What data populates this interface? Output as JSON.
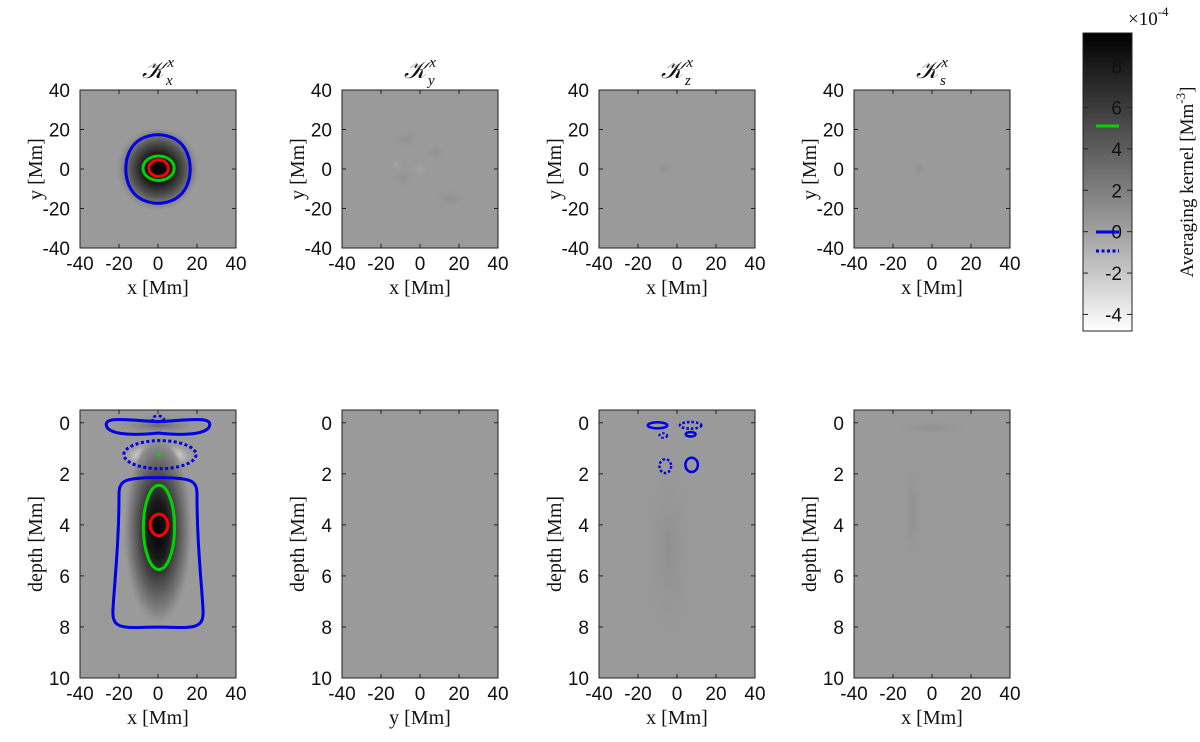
{
  "figure": {
    "panels_top": [
      {
        "title_main": "𝒦",
        "title_sub": "x",
        "title_sup": "x",
        "xlabel": "x [Mm]",
        "ylabel": "y [Mm]"
      },
      {
        "title_main": "𝒦",
        "title_sub": "y",
        "title_sup": "x",
        "xlabel": "x [Mm]",
        "ylabel": "y [Mm]"
      },
      {
        "title_main": "𝒦",
        "title_sub": "z",
        "title_sup": "x",
        "xlabel": "x [Mm]",
        "ylabel": "y [Mm]"
      },
      {
        "title_main": "𝒦",
        "title_sub": "s",
        "title_sup": "x",
        "xlabel": "x [Mm]",
        "ylabel": "y [Mm]"
      }
    ],
    "panels_bottom": [
      {
        "xlabel": "x [Mm]",
        "ylabel": "depth [Mm]"
      },
      {
        "xlabel": "y [Mm]",
        "ylabel": "depth [Mm]"
      },
      {
        "xlabel": "x [Mm]",
        "ylabel": "depth [Mm]"
      },
      {
        "xlabel": "x [Mm]",
        "ylabel": "depth [Mm]"
      }
    ],
    "colorbar": {
      "label": "Averaging kernel [Mm",
      "label_sup": "-3",
      "label_close": "]",
      "multiplier_base": "×10",
      "multiplier_exp": "-4",
      "ticks": [
        "-4",
        "-2",
        "0",
        "2",
        "4",
        "6",
        "8"
      ],
      "range": [
        -4.8,
        9.6
      ]
    },
    "colors": {
      "background": "#9a9a9a",
      "contour_outer": "#0000e6",
      "contour_mid": "#00d400",
      "contour_peak": "#ff0000"
    }
  },
  "chart_data": [
    {
      "type": "heatmap",
      "panel": "top-1",
      "title": "K_x^x",
      "x_range": [
        -40,
        40
      ],
      "y_range": [
        -40,
        40
      ],
      "xticks": [
        -40,
        -20,
        0,
        20,
        40
      ],
      "yticks": [
        40,
        20,
        0,
        -20,
        -40
      ],
      "peak": {
        "x": 0,
        "y": 0,
        "value": 0.00095
      },
      "contours": [
        {
          "level_colorbar": 0.4,
          "style": "solid",
          "color": "blue"
        },
        {
          "level_colorbar": 5,
          "color": "green"
        },
        {
          "level_colorbar": "peak",
          "color": "red"
        }
      ]
    },
    {
      "type": "heatmap",
      "panel": "top-2",
      "title": "K_y^x",
      "x_range": [
        -40,
        40
      ],
      "y_range": [
        -40,
        40
      ],
      "xticks": [
        -40,
        -20,
        0,
        20,
        40
      ],
      "yticks": [
        40,
        20,
        0,
        -20,
        -40
      ],
      "note": "near zero"
    },
    {
      "type": "heatmap",
      "panel": "top-3",
      "title": "K_z^x",
      "x_range": [
        -40,
        40
      ],
      "y_range": [
        -40,
        40
      ],
      "xticks": [
        -40,
        -20,
        0,
        20,
        40
      ],
      "yticks": [
        40,
        20,
        0,
        -20,
        -40
      ],
      "note": "near zero"
    },
    {
      "type": "heatmap",
      "panel": "top-4",
      "title": "K_s^x",
      "x_range": [
        -40,
        40
      ],
      "y_range": [
        -40,
        40
      ],
      "xticks": [
        -40,
        -20,
        0,
        20,
        40
      ],
      "yticks": [
        40,
        20,
        0,
        -20,
        -40
      ],
      "note": "near zero"
    },
    {
      "type": "heatmap",
      "panel": "bottom-1",
      "x_range": [
        -40,
        40
      ],
      "depth_range": [
        -0.5,
        10
      ],
      "xticks": [
        -40,
        -20,
        0,
        20,
        40
      ],
      "yticks": [
        0,
        2,
        4,
        6,
        8,
        10
      ],
      "peak": {
        "x": 0,
        "depth": 4,
        "value": 0.00095
      }
    },
    {
      "type": "heatmap",
      "panel": "bottom-2",
      "x_range": [
        -40,
        40
      ],
      "depth_range": [
        -0.5,
        10
      ],
      "xticks": [
        -40,
        -20,
        0,
        20,
        40
      ],
      "yticks": [
        0,
        2,
        4,
        6,
        8,
        10
      ],
      "note": "near zero"
    },
    {
      "type": "heatmap",
      "panel": "bottom-3",
      "x_range": [
        -40,
        40
      ],
      "depth_range": [
        -0.5,
        10
      ],
      "xticks": [
        -40,
        -20,
        0,
        20,
        40
      ],
      "yticks": [
        0,
        2,
        4,
        6,
        8,
        10
      ],
      "note": "small features near surface"
    },
    {
      "type": "heatmap",
      "panel": "bottom-4",
      "x_range": [
        -40,
        40
      ],
      "depth_range": [
        -0.5,
        10
      ],
      "xticks": [
        -40,
        -20,
        0,
        20,
        40
      ],
      "yticks": [
        0,
        2,
        4,
        6,
        8,
        10
      ],
      "note": "near zero"
    }
  ]
}
